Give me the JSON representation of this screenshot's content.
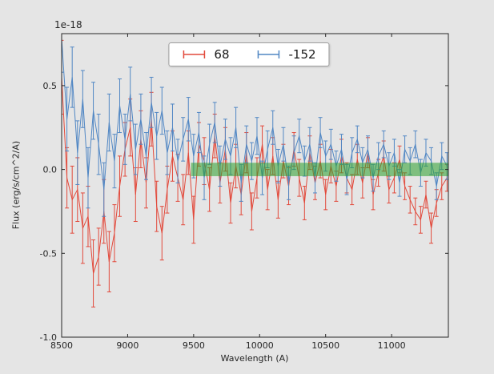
{
  "figure": {
    "background": "#e5e5e5",
    "offset_label": "1e-18"
  },
  "chart_data": {
    "type": "line",
    "style": "errorbar",
    "title": "",
    "xlabel": "Wavelength (A)",
    "ylabel": "Flux (erg/s/cm^2/A)",
    "y_offset_factor": "1e-18",
    "grid": false,
    "legend_position": "upper center",
    "xlim": [
      8500,
      11430
    ],
    "ylim": [
      -1.0,
      0.81
    ],
    "xticks": [
      8500,
      9000,
      9500,
      10000,
      10500,
      11000
    ],
    "xtick_labels": [
      "8500",
      "9000",
      "9500",
      "10000",
      "10500",
      "11000"
    ],
    "yticks": [
      -1.0,
      -0.5,
      0.0,
      0.5
    ],
    "ytick_labels": [
      "-1.0",
      "-0.5",
      "0.0",
      "0.5"
    ],
    "x": [
      8500,
      8540,
      8580,
      8620,
      8660,
      8700,
      8740,
      8780,
      8820,
      8860,
      8900,
      8940,
      8980,
      9020,
      9060,
      9100,
      9140,
      9180,
      9220,
      9260,
      9300,
      9340,
      9380,
      9420,
      9460,
      9500,
      9540,
      9580,
      9620,
      9660,
      9700,
      9740,
      9780,
      9820,
      9860,
      9900,
      9940,
      9980,
      10020,
      10060,
      10100,
      10140,
      10180,
      10220,
      10260,
      10300,
      10340,
      10380,
      10420,
      10460,
      10500,
      10540,
      10580,
      10620,
      10660,
      10700,
      10740,
      10780,
      10820,
      10860,
      10900,
      10940,
      10980,
      11020,
      11060,
      11100,
      11140,
      11180,
      11220,
      11260,
      11300,
      11340,
      11380,
      11420
    ],
    "series": [
      {
        "name": "68",
        "color": "#e2493b",
        "y": [
          0.55,
          -0.05,
          -0.18,
          -0.12,
          -0.35,
          -0.28,
          -0.62,
          -0.52,
          -0.25,
          -0.55,
          -0.38,
          -0.1,
          0.12,
          0.25,
          -0.15,
          0.18,
          -0.08,
          0.3,
          -0.22,
          -0.38,
          -0.12,
          0.08,
          -0.05,
          -0.18,
          0.1,
          -0.3,
          0.15,
          0.05,
          -0.12,
          0.2,
          -0.08,
          0.12,
          -0.2,
          0.02,
          -0.15,
          0.1,
          -0.25,
          -0.05,
          0.15,
          -0.12,
          0.08,
          -0.18,
          0.05,
          -0.1,
          0.12,
          -0.05,
          -0.2,
          0.1,
          -0.08,
          0.05,
          -0.15,
          0.02,
          -0.1,
          0.08,
          -0.05,
          -0.12,
          0.06,
          -0.08,
          0.1,
          -0.15,
          -0.02,
          0.08,
          -0.12,
          -0.05,
          0.06,
          -0.1,
          -0.18,
          -0.25,
          -0.3,
          -0.15,
          -0.35,
          -0.2,
          -0.1,
          -0.05
        ],
        "yerr": [
          0.22,
          0.18,
          0.2,
          0.19,
          0.21,
          0.18,
          0.2,
          0.17,
          0.19,
          0.18,
          0.17,
          0.18,
          0.16,
          0.17,
          0.16,
          0.17,
          0.15,
          0.16,
          0.15,
          0.16,
          0.14,
          0.15,
          0.14,
          0.15,
          0.13,
          0.14,
          0.13,
          0.14,
          0.13,
          0.13,
          0.12,
          0.13,
          0.12,
          0.13,
          0.12,
          0.12,
          0.11,
          0.12,
          0.11,
          0.12,
          0.11,
          0.11,
          0.1,
          0.11,
          0.1,
          0.11,
          0.1,
          0.1,
          0.1,
          0.1,
          0.09,
          0.1,
          0.09,
          0.1,
          0.09,
          0.09,
          0.09,
          0.09,
          0.09,
          0.09,
          0.08,
          0.09,
          0.08,
          0.09,
          0.08,
          0.08,
          0.08,
          0.08,
          0.08,
          0.08,
          0.09,
          0.08,
          0.08,
          0.08
        ]
      },
      {
        "name": "-152",
        "color": "#5187c4",
        "y": [
          0.78,
          0.3,
          0.55,
          0.1,
          0.42,
          -0.05,
          0.35,
          0.15,
          -0.12,
          0.28,
          0.05,
          0.38,
          0.18,
          0.45,
          0.12,
          0.3,
          0.08,
          0.4,
          0.2,
          0.35,
          0.1,
          0.25,
          0.05,
          0.18,
          0.3,
          0.08,
          0.22,
          -0.05,
          0.15,
          0.28,
          0.02,
          0.18,
          0.08,
          0.25,
          -0.08,
          0.15,
          0.05,
          0.2,
          -0.05,
          0.12,
          0.25,
          0.02,
          0.15,
          -0.08,
          0.1,
          0.2,
          0.05,
          0.15,
          -0.05,
          0.22,
          0.08,
          0.15,
          0.02,
          0.12,
          -0.06,
          0.1,
          0.18,
          0.04,
          0.12,
          -0.05,
          0.08,
          0.15,
          0.02,
          0.1,
          -0.08,
          0.12,
          0.05,
          0.15,
          -0.02,
          0.1,
          0.05,
          -0.1,
          0.08,
          0.02
        ],
        "yerr": [
          0.2,
          0.19,
          0.18,
          0.19,
          0.17,
          0.18,
          0.17,
          0.18,
          0.16,
          0.17,
          0.16,
          0.16,
          0.15,
          0.16,
          0.15,
          0.15,
          0.14,
          0.15,
          0.14,
          0.14,
          0.13,
          0.14,
          0.13,
          0.13,
          0.13,
          0.13,
          0.12,
          0.13,
          0.12,
          0.12,
          0.12,
          0.12,
          0.11,
          0.12,
          0.11,
          0.11,
          0.11,
          0.11,
          0.1,
          0.11,
          0.1,
          0.1,
          0.1,
          0.1,
          0.1,
          0.1,
          0.09,
          0.1,
          0.09,
          0.09,
          0.09,
          0.09,
          0.09,
          0.09,
          0.09,
          0.09,
          0.08,
          0.09,
          0.08,
          0.08,
          0.08,
          0.08,
          0.08,
          0.08,
          0.08,
          0.08,
          0.08,
          0.08,
          0.08,
          0.08,
          0.08,
          0.08,
          0.08,
          0.08
        ]
      }
    ],
    "band": {
      "x_start": 9480,
      "x_end": 11430,
      "y_center": 0.0,
      "y_half_height": 0.04,
      "color": "#2ca02c",
      "opacity": 0.55
    }
  }
}
